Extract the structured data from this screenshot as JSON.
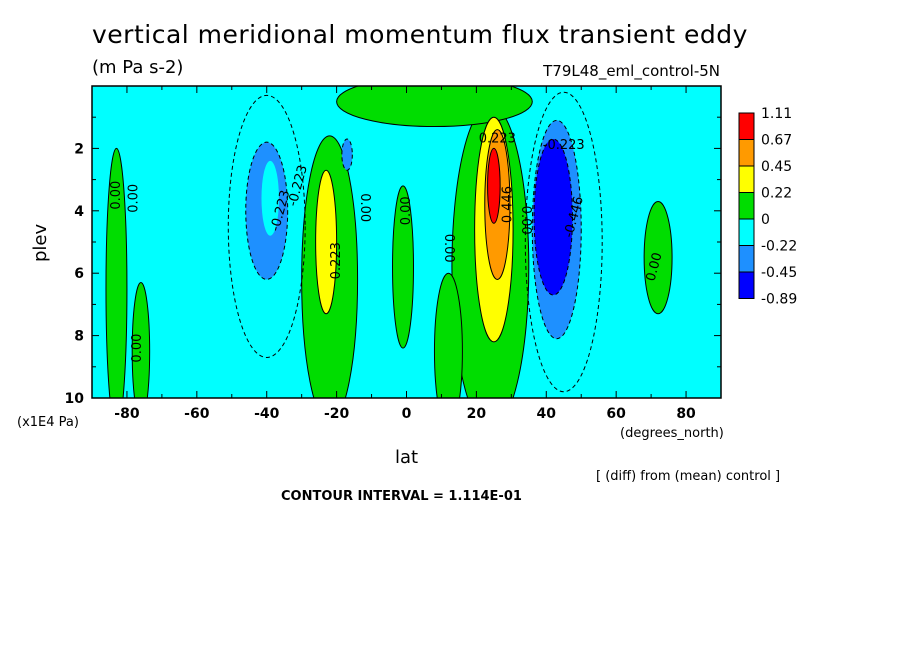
{
  "header": {
    "title": "vertical meridional momentum flux transient eddy",
    "units": "(m Pa s-2)",
    "run_name": "T79L48_eml_control-5N"
  },
  "footer": {
    "y_multiplier": "(x1E4 Pa)",
    "x_units": "(degrees_north)",
    "diff_note": "[ (diff) from (mean) control ]",
    "contour_interval": "CONTOUR INTERVAL = 1.114E-01"
  },
  "chart_data": {
    "type": "heatmap",
    "title": "vertical meridional momentum flux transient eddy",
    "subtitle": "(m Pa s-2)",
    "xlabel": "lat",
    "ylabel": "plev",
    "xlim": [
      -90,
      90
    ],
    "ylim": [
      10,
      0
    ],
    "x_ticks": [
      -80,
      -60,
      -40,
      -20,
      0,
      20,
      40,
      60,
      80
    ],
    "x_tick_labels": [
      "-80",
      "-60",
      "-40",
      "-20",
      "0",
      "20",
      "40",
      "60",
      "80"
    ],
    "y_ticks": [
      2,
      4,
      6,
      8,
      10
    ],
    "y_tick_labels": [
      "2",
      "4",
      "6",
      "8",
      "10"
    ],
    "colorbar": {
      "levels": [
        1.11,
        0.67,
        0.45,
        0.22,
        0,
        -0.22,
        -0.45,
        -0.89
      ],
      "labels": [
        "1.11",
        "0.67",
        "0.45",
        "0.22",
        "0",
        "-0.22",
        "-0.45",
        "-0.89"
      ],
      "colors": [
        "#ff0000",
        "#ff9a00",
        "#ffff00",
        "#00dd00",
        "#00ffff",
        "#1e90ff",
        "#0000ff"
      ]
    },
    "features": [
      {
        "type": "max",
        "lat": 25,
        "plev": 3.2,
        "value": 1.11
      },
      {
        "type": "min",
        "lat": 42,
        "plev": 4.2,
        "value": -0.89
      },
      {
        "type": "min",
        "lat": -40,
        "plev": 4.0,
        "value": -0.45
      },
      {
        "type": "max",
        "lat": -24,
        "plev": 5.0,
        "value": 0.45
      }
    ],
    "contour_labels": [
      {
        "text": "0.00",
        "lat": -83,
        "plev": 3.5,
        "rot": -90
      },
      {
        "text": "0.00",
        "lat": -78,
        "plev": 3.6,
        "rot": -90
      },
      {
        "text": "-0.223",
        "lat": -36,
        "plev": 4.0,
        "rot": -75
      },
      {
        "text": "-0.223",
        "lat": -31,
        "plev": 3.2,
        "rot": -75
      },
      {
        "text": "0.223",
        "lat": -20,
        "plev": 5.6,
        "rot": -90
      },
      {
        "text": "0.00",
        "lat": -12,
        "plev": 3.9,
        "rot": 90
      },
      {
        "text": "0.00",
        "lat": 0,
        "plev": 4.0,
        "rot": -90
      },
      {
        "text": "0.00",
        "lat": 12,
        "plev": 5.2,
        "rot": 90
      },
      {
        "text": "0.223",
        "lat": 26,
        "plev": 1.7,
        "rot": 0
      },
      {
        "text": "0.446",
        "lat": 29,
        "plev": 3.8,
        "rot": -90
      },
      {
        "text": "0.00",
        "lat": 34,
        "plev": 4.3,
        "rot": 90
      },
      {
        "text": "-0.223",
        "lat": 45,
        "plev": 1.9,
        "rot": 0
      },
      {
        "text": "-0.446",
        "lat": 48,
        "plev": 4.2,
        "rot": -75
      },
      {
        "text": "0.00",
        "lat": 71,
        "plev": 5.8,
        "rot": -75
      },
      {
        "text": "0.00",
        "lat": -77,
        "plev": 8.4,
        "rot": -90
      }
    ]
  }
}
